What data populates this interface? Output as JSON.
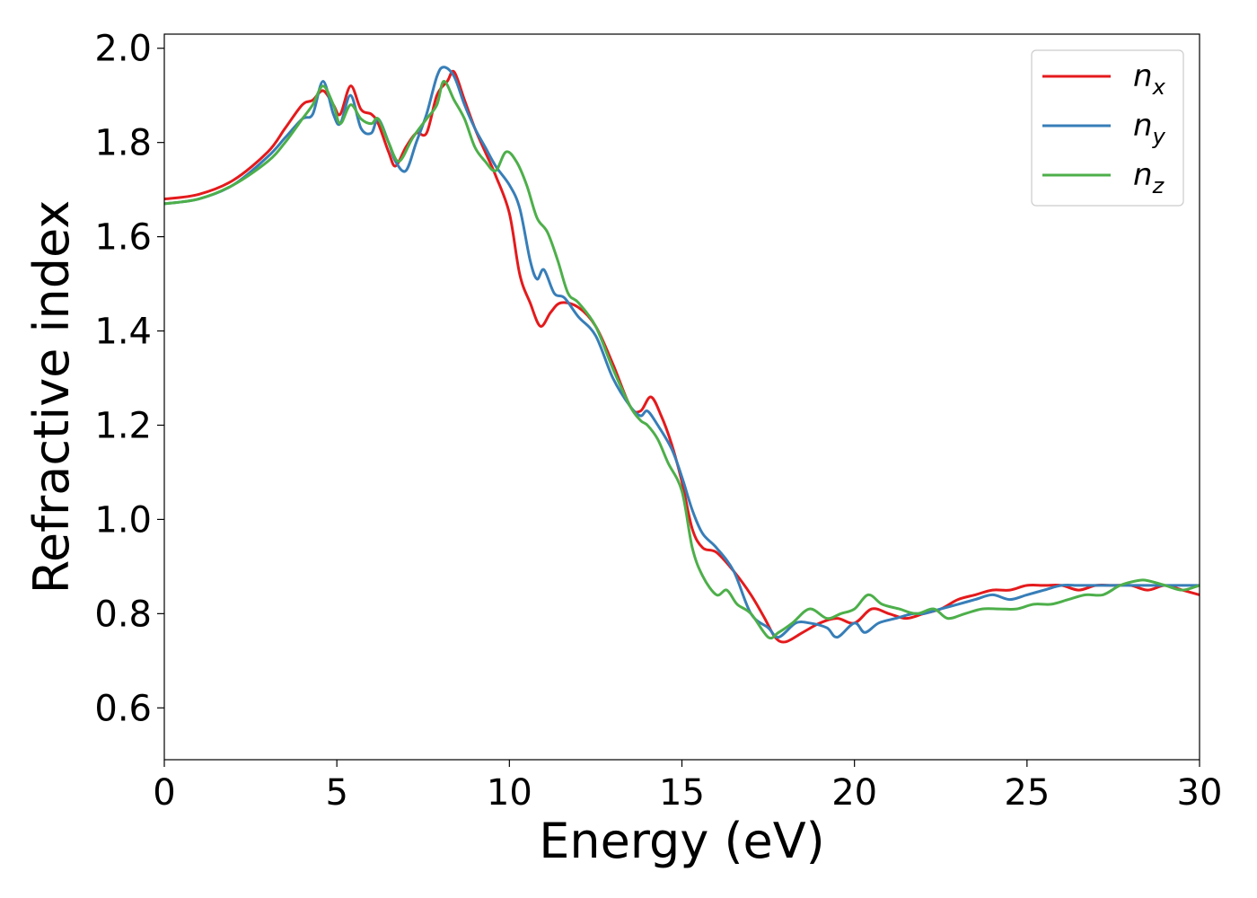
{
  "chart_data": {
    "type": "line",
    "xlabel": "Energy (eV)",
    "ylabel": "Refractive index",
    "xlim": [
      0,
      30
    ],
    "ylim": [
      0.49,
      2.03
    ],
    "xticks": [
      "0",
      "5",
      "10",
      "15",
      "20",
      "25",
      "30"
    ],
    "yticks": [
      "0.6",
      "0.8",
      "1.0",
      "1.2",
      "1.4",
      "1.6",
      "1.8",
      "2.0"
    ],
    "grid": false,
    "legend_position": "top-right",
    "series": [
      {
        "name": "n",
        "subscript": "x",
        "color": "#e41a1c",
        "x": [
          0,
          1,
          2,
          3,
          3.5,
          4,
          4.3,
          4.6,
          4.9,
          5.1,
          5.4,
          5.7,
          6.0,
          6.2,
          6.5,
          6.7,
          7.0,
          7.3,
          7.6,
          7.9,
          8.2,
          8.4,
          8.7,
          9.0,
          9.3,
          9.6,
          10.0,
          10.3,
          10.6,
          10.9,
          11.2,
          11.5,
          12.0,
          12.5,
          13.0,
          13.5,
          13.8,
          14.1,
          14.4,
          14.7,
          15.0,
          15.3,
          15.6,
          16.0,
          16.5,
          17.0,
          17.4,
          17.7,
          18.0,
          18.5,
          19.0,
          19.5,
          20.0,
          20.5,
          21.0,
          21.5,
          22.0,
          22.5,
          23.0,
          23.5,
          24.0,
          24.5,
          25.0,
          25.5,
          26.0,
          26.5,
          27.0,
          27.5,
          28.0,
          28.5,
          29.0,
          29.5,
          30.0
        ],
        "values": [
          1.68,
          1.69,
          1.72,
          1.78,
          1.83,
          1.88,
          1.89,
          1.91,
          1.88,
          1.86,
          1.92,
          1.87,
          1.86,
          1.84,
          1.78,
          1.75,
          1.79,
          1.82,
          1.82,
          1.9,
          1.93,
          1.95,
          1.89,
          1.83,
          1.78,
          1.73,
          1.65,
          1.52,
          1.46,
          1.41,
          1.44,
          1.46,
          1.45,
          1.41,
          1.33,
          1.24,
          1.23,
          1.26,
          1.22,
          1.16,
          1.08,
          0.98,
          0.94,
          0.93,
          0.89,
          0.84,
          0.79,
          0.75,
          0.74,
          0.76,
          0.78,
          0.79,
          0.78,
          0.81,
          0.8,
          0.79,
          0.8,
          0.81,
          0.83,
          0.84,
          0.85,
          0.85,
          0.86,
          0.86,
          0.86,
          0.85,
          0.86,
          0.86,
          0.86,
          0.85,
          0.86,
          0.85,
          0.84
        ]
      },
      {
        "name": "n",
        "subscript": "y",
        "color": "#377eb8",
        "x": [
          0,
          1,
          2,
          3,
          3.5,
          4,
          4.3,
          4.6,
          4.9,
          5.1,
          5.4,
          5.7,
          6.0,
          6.2,
          6.5,
          6.7,
          7.0,
          7.3,
          7.6,
          7.9,
          8.1,
          8.4,
          8.7,
          9.0,
          9.3,
          9.6,
          10.0,
          10.3,
          10.6,
          10.8,
          11.0,
          11.3,
          11.6,
          12.0,
          12.5,
          13.0,
          13.5,
          13.8,
          14.0,
          14.3,
          14.7,
          15.0,
          15.3,
          15.6,
          16.0,
          16.5,
          17.0,
          17.5,
          17.8,
          18.3,
          18.7,
          19.2,
          19.5,
          20.0,
          20.3,
          20.7,
          21.2,
          21.7,
          22.0,
          22.5,
          23.0,
          23.5,
          24.0,
          24.5,
          25.0,
          25.5,
          26.0,
          26.5,
          27.0,
          27.5,
          28.0,
          28.5,
          29.0,
          29.5,
          30.0
        ],
        "values": [
          1.67,
          1.68,
          1.71,
          1.77,
          1.81,
          1.85,
          1.86,
          1.93,
          1.86,
          1.84,
          1.9,
          1.83,
          1.82,
          1.85,
          1.8,
          1.76,
          1.74,
          1.8,
          1.86,
          1.94,
          1.96,
          1.94,
          1.88,
          1.83,
          1.79,
          1.75,
          1.71,
          1.66,
          1.55,
          1.51,
          1.53,
          1.48,
          1.47,
          1.43,
          1.39,
          1.3,
          1.24,
          1.22,
          1.23,
          1.2,
          1.15,
          1.09,
          1.02,
          0.97,
          0.94,
          0.89,
          0.8,
          0.77,
          0.75,
          0.78,
          0.78,
          0.77,
          0.75,
          0.78,
          0.76,
          0.78,
          0.79,
          0.8,
          0.8,
          0.81,
          0.82,
          0.83,
          0.84,
          0.83,
          0.84,
          0.85,
          0.86,
          0.86,
          0.86,
          0.86,
          0.86,
          0.86,
          0.86,
          0.86,
          0.86
        ]
      },
      {
        "name": "n",
        "subscript": "z",
        "color": "#4daf4a",
        "x": [
          0,
          1,
          2,
          3,
          3.5,
          4,
          4.3,
          4.6,
          4.9,
          5.1,
          5.4,
          5.7,
          6.0,
          6.2,
          6.5,
          6.8,
          7.2,
          7.6,
          7.9,
          8.1,
          8.4,
          8.7,
          9.0,
          9.3,
          9.6,
          9.9,
          10.2,
          10.5,
          10.8,
          11.1,
          11.4,
          11.7,
          12.0,
          12.5,
          13.0,
          13.5,
          13.8,
          14.0,
          14.3,
          14.6,
          15.0,
          15.3,
          15.6,
          16.0,
          16.3,
          16.6,
          17.0,
          17.5,
          17.8,
          18.2,
          18.7,
          19.2,
          19.6,
          20.0,
          20.4,
          20.8,
          21.3,
          21.8,
          22.3,
          22.7,
          23.2,
          23.7,
          24.2,
          24.7,
          25.2,
          25.7,
          26.2,
          26.7,
          27.2,
          27.7,
          28.2,
          28.5,
          29.0,
          29.5,
          30.0
        ],
        "values": [
          1.67,
          1.68,
          1.71,
          1.76,
          1.8,
          1.85,
          1.88,
          1.92,
          1.88,
          1.84,
          1.88,
          1.85,
          1.84,
          1.85,
          1.8,
          1.76,
          1.81,
          1.85,
          1.88,
          1.93,
          1.89,
          1.85,
          1.79,
          1.76,
          1.74,
          1.78,
          1.76,
          1.71,
          1.64,
          1.61,
          1.55,
          1.48,
          1.46,
          1.41,
          1.32,
          1.24,
          1.21,
          1.2,
          1.17,
          1.12,
          1.06,
          0.94,
          0.88,
          0.84,
          0.85,
          0.82,
          0.8,
          0.75,
          0.76,
          0.78,
          0.81,
          0.79,
          0.8,
          0.81,
          0.84,
          0.82,
          0.81,
          0.8,
          0.81,
          0.79,
          0.8,
          0.81,
          0.81,
          0.81,
          0.82,
          0.82,
          0.83,
          0.84,
          0.84,
          0.86,
          0.87,
          0.87,
          0.86,
          0.85,
          0.86
        ]
      }
    ]
  }
}
